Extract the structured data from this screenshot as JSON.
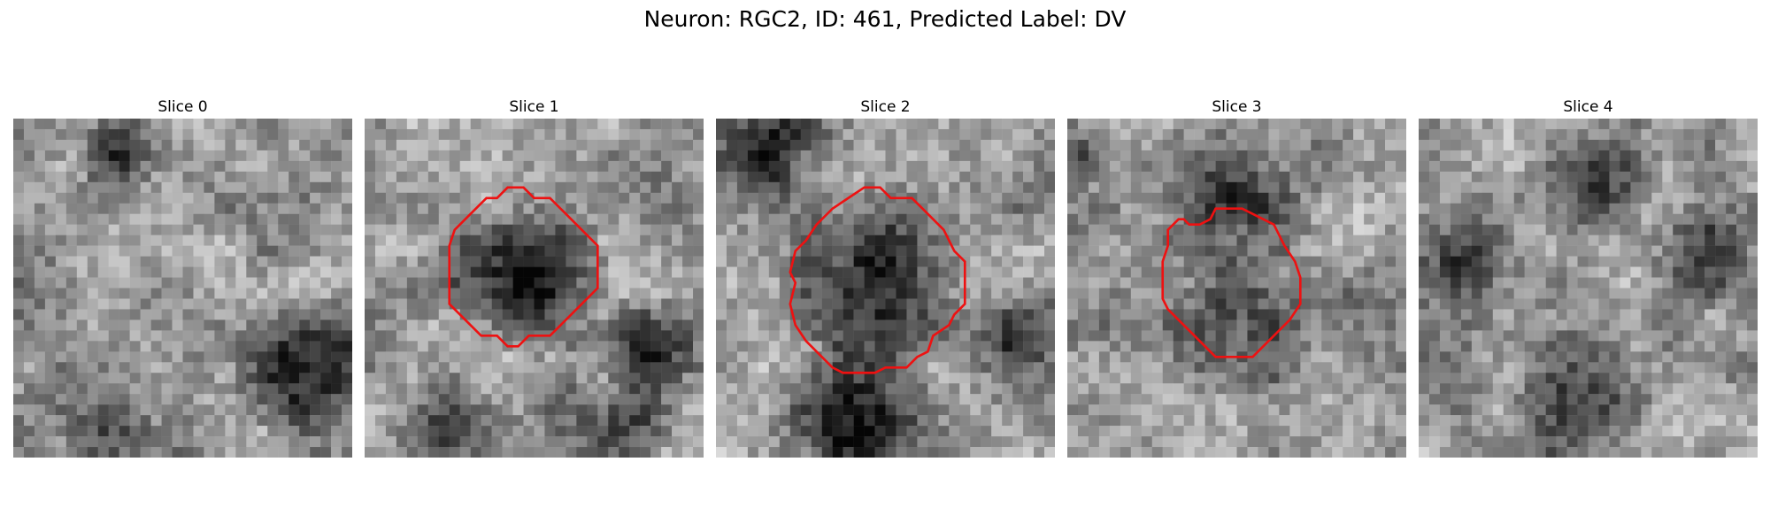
{
  "figure": {
    "title": "Neuron: RGC2, ID: 461, Predicted Label: DV"
  },
  "panels": [
    {
      "title": "Slice 0",
      "has_contour": false
    },
    {
      "title": "Slice 1",
      "has_contour": true
    },
    {
      "title": "Slice 2",
      "has_contour": true
    },
    {
      "title": "Slice 3",
      "has_contour": true
    },
    {
      "title": "Slice 4",
      "has_contour": false
    }
  ],
  "colors": {
    "contour": "#ee1111",
    "background": "#ffffff"
  }
}
